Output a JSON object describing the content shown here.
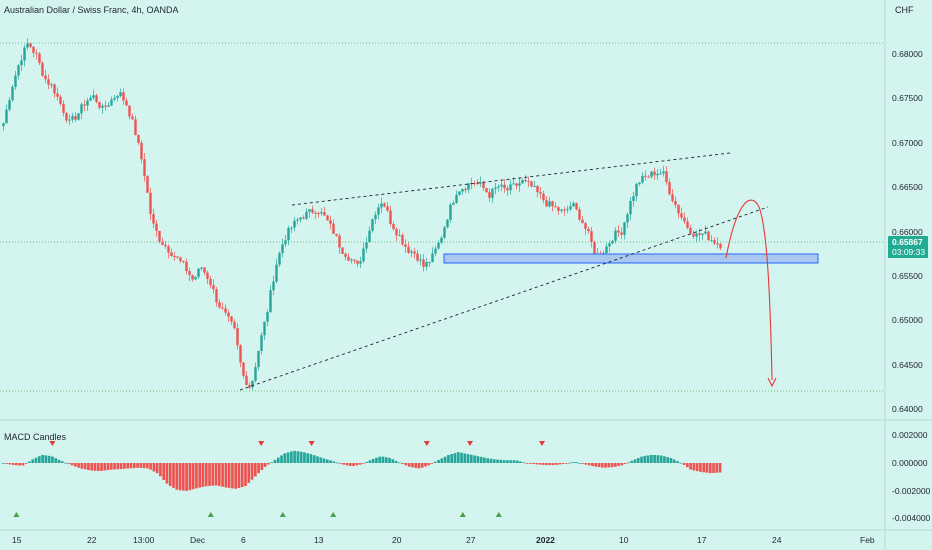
{
  "header": {
    "title": "Australian Dollar / Swiss Franc, 4h, OANDA",
    "currency": "CHF"
  },
  "price_axis": {
    "ticks": [
      "0.68000",
      "0.67500",
      "0.67000",
      "0.66500",
      "0.66000",
      "0.65500",
      "0.65000",
      "0.64500",
      "0.64000"
    ]
  },
  "current_price": {
    "value": "0.65867",
    "countdown": "03:09:33"
  },
  "macd_panel": {
    "title": "MACD Candles",
    "ticks": [
      "0.002000",
      "0.000000",
      "-0.002000",
      "-0.004000"
    ]
  },
  "time_axis": {
    "labels": [
      "15",
      "22",
      "13:00",
      "Dec",
      "6",
      "13",
      "20",
      "27",
      "2022",
      "10",
      "17",
      "24",
      "Feb"
    ]
  },
  "colors": {
    "up": "#26a69a",
    "down": "#ef5350",
    "background": "#d4f4f0",
    "zone": "#a8c8f0",
    "zone_border": "#2962ff",
    "arrow": "#e53935",
    "price_tag": "#22ab94"
  },
  "chart_data": [
    {
      "type": "candlestick",
      "title": "Australian Dollar / Swiss Franc, 4h, OANDA",
      "y_unit": "CHF",
      "ylim": [
        0.6395,
        0.6835
      ],
      "x_labels": [
        "15",
        "22",
        "13:00",
        "Dec",
        "6",
        "13",
        "20",
        "27",
        "2022",
        "10",
        "17",
        "24",
        "Feb"
      ],
      "close_path": [
        0.672,
        0.676,
        0.679,
        0.681,
        0.6795,
        0.677,
        0.676,
        0.674,
        0.672,
        0.673,
        0.6745,
        0.675,
        0.6735,
        0.6745,
        0.6755,
        0.674,
        0.671,
        0.667,
        0.661,
        0.659,
        0.658,
        0.657,
        0.656,
        0.6545,
        0.656,
        0.6545,
        0.652,
        0.6505,
        0.649,
        0.644,
        0.6425,
        0.647,
        0.651,
        0.656,
        0.659,
        0.6605,
        0.6615,
        0.662,
        0.6625,
        0.6615,
        0.66,
        0.658,
        0.657,
        0.656,
        0.659,
        0.662,
        0.6635,
        0.661,
        0.6595,
        0.658,
        0.6575,
        0.656,
        0.657,
        0.659,
        0.662,
        0.6645,
        0.665,
        0.6655,
        0.665,
        0.664,
        0.665,
        0.6645,
        0.665,
        0.6655,
        0.665,
        0.664,
        0.663,
        0.6625,
        0.662,
        0.663,
        0.6615,
        0.6595,
        0.657,
        0.658,
        0.6595,
        0.66,
        0.663,
        0.6655,
        0.666,
        0.6665,
        0.6665,
        0.664,
        0.662,
        0.6605,
        0.6595,
        0.6597,
        0.659,
        0.6585
      ],
      "resistance_line": [
        [
          0.0,
          0.6633
        ],
        [
          1.0,
          0.6688
        ]
      ],
      "support_line": [
        [
          0.0,
          0.642
        ],
        [
          1.0,
          0.663
        ]
      ],
      "support_zone": [
        0.6562,
        0.6572
      ],
      "current_price": 0.65867
    },
    {
      "type": "histogram",
      "title": "MACD Candles",
      "ylim": [
        -0.0042,
        0.0024
      ],
      "path": [
        0.0,
        -0.0003,
        -0.0004,
        0.0005,
        0.0012,
        0.001,
        0.0003,
        -0.0003,
        -0.0008,
        -0.0011,
        -0.0012,
        -0.001,
        -0.0009,
        -0.0008,
        -0.0007,
        -0.0008,
        -0.0016,
        -0.0032,
        -0.004,
        -0.0041,
        -0.0037,
        -0.0034,
        -0.0033,
        -0.0036,
        -0.0038,
        -0.0034,
        -0.002,
        -0.0006,
        0.0004,
        0.0014,
        0.0018,
        0.0016,
        0.0012,
        0.0007,
        0.0003,
        -0.0002,
        -0.0005,
        -0.0002,
        0.0005,
        0.001,
        0.0007,
        0.0,
        -0.0006,
        -0.0008,
        -0.0003,
        0.0005,
        0.0012,
        0.0016,
        0.0013,
        0.001,
        0.0007,
        0.0005,
        0.0004,
        0.0004,
        0.0,
        -0.0002,
        -0.0003,
        -0.0003,
        -0.0001,
        0.0002,
        -0.0002,
        -0.0005,
        -0.0007,
        -0.0006,
        -0.0003,
        0.0004,
        0.001,
        0.0012,
        0.0011,
        0.0007,
        0.0,
        -0.001,
        -0.0013,
        -0.0015,
        -0.0014
      ],
      "signals_down_at": [
        0.07,
        0.36,
        0.43,
        0.59,
        0.65,
        0.75
      ],
      "signals_up_at": [
        0.02,
        0.29,
        0.39,
        0.46,
        0.64,
        0.69
      ]
    }
  ]
}
